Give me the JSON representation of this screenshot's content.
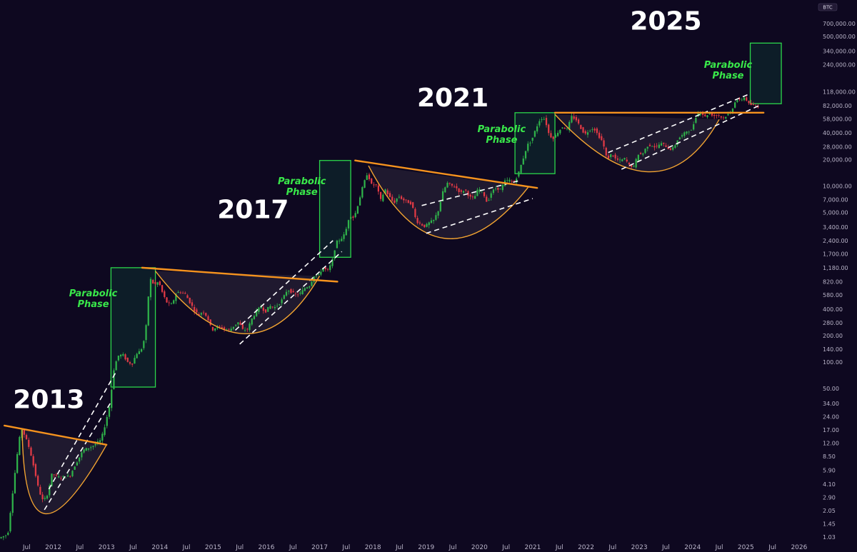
{
  "chart_data": {
    "type": "candlestick",
    "ticker": "BTC",
    "y_scale": "log",
    "ylim": [
      1.03,
      700000
    ],
    "y_ticks": [
      700000,
      500000,
      340000,
      240000,
      118000,
      82000,
      58000,
      40000,
      28000,
      20000,
      10000,
      7000,
      5000,
      3400,
      2400,
      1700,
      1180,
      820,
      580,
      400,
      280,
      200,
      140,
      100,
      50,
      34,
      24,
      17,
      12,
      8.5,
      5.9,
      4.1,
      2.9,
      2.05,
      1.45,
      1.03
    ],
    "y_tick_labels": [
      "700,000.00",
      "500,000.00",
      "340,000.00",
      "240,000.00",
      "118,000.00",
      "82,000.00",
      "58,000.00",
      "40,000.00",
      "28,000.00",
      "20,000.00",
      "10,000.00",
      "7,000.00",
      "5,000.00",
      "3,400.00",
      "2,400.00",
      "1,700.00",
      "1,180.00",
      "820.00",
      "580.00",
      "400.00",
      "280.00",
      "200.00",
      "140.00",
      "100.00",
      "50.00",
      "34.00",
      "24.00",
      "17.00",
      "12.00",
      "8.50",
      "5.90",
      "4.10",
      "2.90",
      "2.05",
      "1.45",
      "1.03"
    ],
    "x_ticks": [
      "2011-07",
      "2012-01",
      "2012-07",
      "2013-01",
      "2013-07",
      "2014-01",
      "2014-07",
      "2015-01",
      "2015-07",
      "2016-01",
      "2016-07",
      "2017-01",
      "2017-07",
      "2018-01",
      "2018-07",
      "2019-01",
      "2019-07",
      "2020-01",
      "2020-07",
      "2021-01",
      "2021-07",
      "2022-01",
      "2022-07",
      "2023-01",
      "2023-07",
      "2024-01",
      "2024-07",
      "2025-01",
      "2025-07",
      "2026-01"
    ],
    "x_tick_labels": [
      "Jul",
      "2012",
      "Jul",
      "2013",
      "Jul",
      "2014",
      "Jul",
      "2015",
      "Jul",
      "2016",
      "Jul",
      "2017",
      "Jul",
      "2018",
      "Jul",
      "2019",
      "Jul",
      "2020",
      "Jul",
      "2021",
      "Jul",
      "2022",
      "Jul",
      "2023",
      "Jul",
      "2024",
      "Jul",
      "2025",
      "Jul",
      "2026"
    ],
    "xlim": [
      "2011-01",
      "2026-06"
    ],
    "price_path": [
      [
        "2011-01",
        1.0
      ],
      [
        "2011-03",
        1.1
      ],
      [
        "2011-05",
        8
      ],
      [
        "2011-06",
        18
      ],
      [
        "2011-07",
        14
      ],
      [
        "2011-08",
        10
      ],
      [
        "2011-09",
        6
      ],
      [
        "2011-10",
        3.5
      ],
      [
        "2011-11",
        2.6
      ],
      [
        "2011-12",
        3.2
      ],
      [
        "2012-01",
        5.5
      ],
      [
        "2012-02",
        5.0
      ],
      [
        "2012-03",
        4.9
      ],
      [
        "2012-05",
        5.1
      ],
      [
        "2012-06",
        6.5
      ],
      [
        "2012-08",
        10
      ],
      [
        "2012-10",
        11
      ],
      [
        "2012-12",
        13
      ],
      [
        "2013-01",
        20
      ],
      [
        "2013-02",
        33
      ],
      [
        "2013-03",
        90
      ],
      [
        "2013-04",
        120
      ],
      [
        "2013-05",
        120
      ],
      [
        "2013-06",
        100
      ],
      [
        "2013-07",
        95
      ],
      [
        "2013-08",
        125
      ],
      [
        "2013-09",
        135
      ],
      [
        "2013-10",
        200
      ],
      [
        "2013-11",
        900
      ],
      [
        "2013-12",
        750
      ],
      [
        "2014-01",
        820
      ],
      [
        "2014-02",
        580
      ],
      [
        "2014-03",
        460
      ],
      [
        "2014-04",
        450
      ],
      [
        "2014-05",
        620
      ],
      [
        "2014-06",
        620
      ],
      [
        "2014-07",
        590
      ],
      [
        "2014-08",
        480
      ],
      [
        "2014-09",
        390
      ],
      [
        "2014-10",
        340
      ],
      [
        "2014-11",
        380
      ],
      [
        "2014-12",
        320
      ],
      [
        "2015-01",
        230
      ],
      [
        "2015-02",
        250
      ],
      [
        "2015-03",
        250
      ],
      [
        "2015-04",
        235
      ],
      [
        "2015-05",
        230
      ],
      [
        "2015-06",
        260
      ],
      [
        "2015-07",
        285
      ],
      [
        "2015-08",
        230
      ],
      [
        "2015-09",
        236
      ],
      [
        "2015-10",
        310
      ],
      [
        "2015-11",
        375
      ],
      [
        "2015-12",
        430
      ],
      [
        "2016-01",
        370
      ],
      [
        "2016-02",
        435
      ],
      [
        "2016-03",
        415
      ],
      [
        "2016-04",
        450
      ],
      [
        "2016-05",
        530
      ],
      [
        "2016-06",
        670
      ],
      [
        "2016-07",
        620
      ],
      [
        "2016-08",
        575
      ],
      [
        "2016-09",
        610
      ],
      [
        "2016-10",
        700
      ],
      [
        "2016-11",
        740
      ],
      [
        "2016-12",
        960
      ],
      [
        "2017-01",
        970
      ],
      [
        "2017-02",
        1190
      ],
      [
        "2017-03",
        1080
      ],
      [
        "2017-04",
        1350
      ],
      [
        "2017-05",
        2300
      ],
      [
        "2017-06",
        2480
      ],
      [
        "2017-07",
        2880
      ],
      [
        "2017-08",
        4700
      ],
      [
        "2017-09",
        4340
      ],
      [
        "2017-10",
        6450
      ],
      [
        "2017-11",
        10000
      ],
      [
        "2017-12",
        14000
      ],
      [
        "2018-01",
        10200
      ],
      [
        "2018-02",
        10300
      ],
      [
        "2018-03",
        6900
      ],
      [
        "2018-04",
        9200
      ],
      [
        "2018-05",
        7500
      ],
      [
        "2018-06",
        6400
      ],
      [
        "2018-07",
        7700
      ],
      [
        "2018-08",
        7000
      ],
      [
        "2018-09",
        6600
      ],
      [
        "2018-10",
        6300
      ],
      [
        "2018-11",
        4000
      ],
      [
        "2018-12",
        3700
      ],
      [
        "2019-01",
        3450
      ],
      [
        "2019-02",
        3850
      ],
      [
        "2019-03",
        4100
      ],
      [
        "2019-04",
        5300
      ],
      [
        "2019-05",
        8500
      ],
      [
        "2019-06",
        10800
      ],
      [
        "2019-07",
        10100
      ],
      [
        "2019-08",
        9600
      ],
      [
        "2019-09",
        8300
      ],
      [
        "2019-10",
        9200
      ],
      [
        "2019-11",
        7500
      ],
      [
        "2019-12",
        7200
      ],
      [
        "2020-01",
        9350
      ],
      [
        "2020-02",
        8600
      ],
      [
        "2020-03",
        6400
      ],
      [
        "2020-04",
        8600
      ],
      [
        "2020-05",
        9450
      ],
      [
        "2020-06",
        9150
      ],
      [
        "2020-07",
        11300
      ],
      [
        "2020-08",
        11650
      ],
      [
        "2020-09",
        10800
      ],
      [
        "2020-10",
        13800
      ],
      [
        "2020-11",
        19700
      ],
      [
        "2020-12",
        29000
      ],
      [
        "2021-01",
        33100
      ],
      [
        "2021-02",
        45200
      ],
      [
        "2021-03",
        58800
      ],
      [
        "2021-04",
        57700
      ],
      [
        "2021-05",
        37300
      ],
      [
        "2021-06",
        35000
      ],
      [
        "2021-07",
        41500
      ],
      [
        "2021-08",
        47100
      ],
      [
        "2021-09",
        43800
      ],
      [
        "2021-10",
        61300
      ],
      [
        "2021-11",
        57000
      ],
      [
        "2021-12",
        46300
      ],
      [
        "2022-01",
        38500
      ],
      [
        "2022-02",
        43200
      ],
      [
        "2022-03",
        45500
      ],
      [
        "2022-04",
        37700
      ],
      [
        "2022-05",
        31800
      ],
      [
        "2022-06",
        19900
      ],
      [
        "2022-07",
        23300
      ],
      [
        "2022-08",
        20000
      ],
      [
        "2022-09",
        19400
      ],
      [
        "2022-10",
        20500
      ],
      [
        "2022-11",
        17200
      ],
      [
        "2022-12",
        16500
      ],
      [
        "2023-01",
        23100
      ],
      [
        "2023-02",
        23100
      ],
      [
        "2023-03",
        28500
      ],
      [
        "2023-04",
        29300
      ],
      [
        "2023-05",
        27200
      ],
      [
        "2023-06",
        30500
      ],
      [
        "2023-07",
        29200
      ],
      [
        "2023-08",
        26000
      ],
      [
        "2023-09",
        27000
      ],
      [
        "2023-10",
        34500
      ],
      [
        "2023-11",
        37700
      ],
      [
        "2023-12",
        42300
      ],
      [
        "2024-01",
        42600
      ],
      [
        "2024-02",
        61200
      ],
      [
        "2024-03",
        71300
      ],
      [
        "2024-04",
        60700
      ],
      [
        "2024-05",
        67500
      ],
      [
        "2024-06",
        62700
      ],
      [
        "2024-07",
        64600
      ],
      [
        "2024-08",
        58900
      ],
      [
        "2024-09",
        63300
      ],
      [
        "2024-10",
        70200
      ],
      [
        "2024-11",
        96400
      ],
      [
        "2024-12",
        93400
      ],
      [
        "2025-01",
        102400
      ],
      [
        "2025-02",
        84400
      ],
      [
        "2025-03",
        82500
      ],
      [
        "2025-04",
        80000
      ]
    ],
    "annotations": {
      "cycle_years": [
        {
          "label": "2013",
          "x": "2011-12",
          "y": 30
        },
        {
          "label": "2017",
          "x": "2015-10",
          "y": 4300
        },
        {
          "label": "2021",
          "x": "2019-07",
          "y": 80000
        },
        {
          "label": "2025",
          "x": "2023-07",
          "y": 600000
        }
      ],
      "parabolic_phase_label_lines": [
        "Parabolic",
        "Phase"
      ],
      "parabolic_boxes": [
        {
          "x0": "2013-02",
          "x1": "2013-12",
          "y0": 52,
          "y1": 1180,
          "label_x": "2012-10",
          "label_y": 560
        },
        {
          "x0": "2017-01",
          "x1": "2017-08",
          "y0": 1550,
          "y1": 19500,
          "label_x": "2016-09",
          "label_y": 10500
        },
        {
          "x0": "2020-09",
          "x1": "2021-06",
          "y0": 13800,
          "y1": 68000,
          "label_x": "2020-06",
          "label_y": 41000
        },
        {
          "x0": "2025-02",
          "x1": "2025-09",
          "y0": 86000,
          "y1": 420000,
          "label_x": "2024-09",
          "label_y": 220000
        }
      ],
      "resistance_lines": [
        {
          "from": [
            "2011-02",
            19
          ],
          "to": [
            "2013-01",
            11.5
          ]
        },
        {
          "from": [
            "2013-09",
            1180
          ],
          "to": [
            "2017-05",
            820
          ]
        },
        {
          "from": [
            "2017-09",
            19500
          ],
          "to": [
            "2021-02",
            9500
          ]
        },
        {
          "from": [
            "2021-06",
            68000
          ],
          "to": [
            "2025-05",
            68000
          ]
        }
      ],
      "cup_curves": [
        {
          "from": [
            "2011-06",
            17
          ],
          "low": [
            "2011-11",
            1.9
          ],
          "to": [
            "2013-01",
            11.5
          ]
        },
        {
          "from": [
            "2013-12",
            1080
          ],
          "low": [
            "2015-08",
            210
          ],
          "to": [
            "2017-01",
            950
          ]
        },
        {
          "from": [
            "2017-12",
            17000
          ],
          "low": [
            "2019-05",
            2550
          ],
          "to": [
            "2020-12",
            9700
          ]
        },
        {
          "from": [
            "2021-06",
            65000
          ],
          "low": [
            "2023-03",
            14500
          ],
          "to": [
            "2024-07",
            57000
          ]
        }
      ],
      "support_channels": [
        {
          "from": [
            "2011-11",
            2.1
          ],
          "to": [
            "2013-02",
            35
          ],
          "upper_from": [
            "2011-12",
            3.6
          ],
          "upper_to": [
            "2013-03",
            75
          ]
        },
        {
          "from": [
            "2015-07",
            160
          ],
          "to": [
            "2017-06",
            1800
          ],
          "upper_from": [
            "2015-06",
            230
          ],
          "upper_to": [
            "2017-04",
            2400
          ]
        },
        {
          "from": [
            "2019-01",
            2900
          ],
          "to": [
            "2021-01",
            7200
          ],
          "upper_from": [
            "2018-12",
            6000
          ],
          "upper_to": [
            "2020-10",
            11500
          ]
        },
        {
          "from": [
            "2022-09",
            15500
          ],
          "to": [
            "2025-04",
            82000
          ],
          "upper_from": [
            "2022-06",
            24000
          ],
          "upper_to": [
            "2025-02",
            112000
          ]
        }
      ]
    },
    "colors": {
      "background": "#0e0820",
      "up": "#2fb34a",
      "down": "#e23a45",
      "resistance": "#f6931e",
      "cup": "#f3a431",
      "channel": "#ffffff",
      "box": "#2bd64b",
      "box_fill": "#0d3030",
      "phase_text": "#39e84a",
      "year_text": "#ffffff"
    }
  }
}
